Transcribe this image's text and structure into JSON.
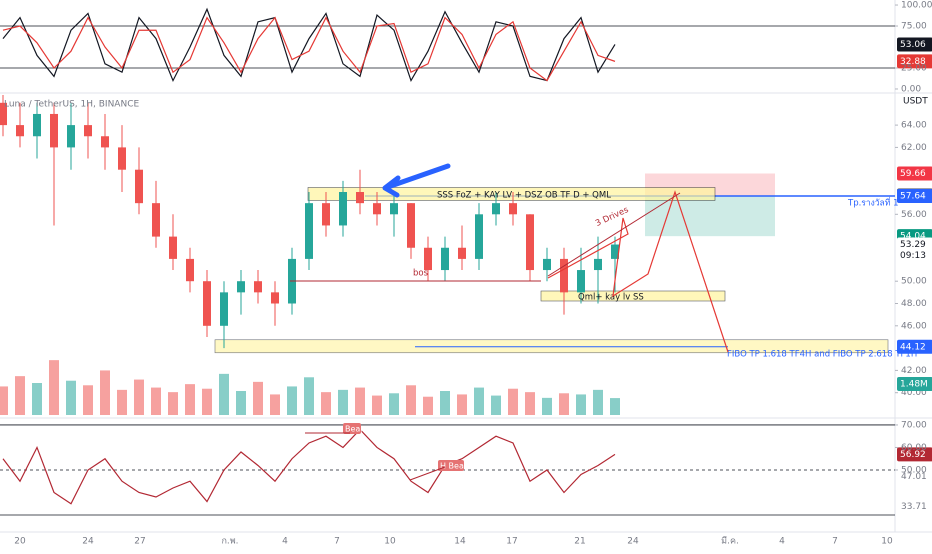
{
  "chart_data": [
    {
      "type": "line",
      "series": [
        {
          "color": "#131722",
          "values": [
            60,
            85,
            40,
            15,
            70,
            90,
            30,
            20,
            85,
            60,
            10,
            50,
            95,
            40,
            15,
            80,
            85,
            20,
            60,
            90,
            30,
            15,
            88,
            70,
            10,
            45,
            92,
            55,
            20,
            80,
            75,
            15,
            10,
            60,
            85,
            20,
            53.06
          ]
        },
        {
          "color": "#e53935",
          "values": [
            70,
            75,
            55,
            25,
            45,
            85,
            50,
            25,
            70,
            70,
            20,
            35,
            85,
            55,
            20,
            60,
            85,
            35,
            45,
            85,
            45,
            20,
            75,
            78,
            20,
            30,
            85,
            65,
            25,
            65,
            80,
            25,
            10,
            45,
            80,
            40,
            32.88
          ]
        }
      ],
      "ylim": [
        -3.6,
        106
      ],
      "yticks": [
        {
          "value": 100,
          "label": "100.00"
        },
        {
          "value": 75,
          "label": "75.00"
        },
        {
          "value": 25,
          "label": "25.00"
        },
        {
          "value": 0,
          "label": "0.00"
        }
      ],
      "hlines": [
        75,
        25
      ]
    },
    {
      "type": "candlestick",
      "title": "Luna / TetherUS, 1H, BINANCE",
      "unit": "USDT",
      "open": [
        66,
        64,
        63,
        65,
        62,
        64,
        63,
        62,
        60,
        57,
        54,
        52,
        50,
        46,
        49,
        50,
        49,
        48,
        52,
        57,
        55,
        58,
        57,
        56,
        57,
        53,
        51,
        53,
        52,
        56,
        57,
        56,
        51,
        52,
        49,
        51,
        52
      ],
      "high": [
        67,
        66,
        66,
        66,
        66,
        66,
        65,
        64,
        62,
        59,
        56,
        53,
        51,
        50,
        51,
        51,
        50,
        53,
        58,
        58,
        59,
        60,
        58,
        58,
        57,
        54,
        54,
        55,
        57,
        58,
        58,
        56,
        53,
        53,
        53,
        54,
        54
      ],
      "low": [
        63,
        62,
        61,
        55,
        60,
        61,
        60,
        58,
        56,
        53,
        51,
        49,
        45,
        44,
        47,
        48,
        46,
        47,
        51,
        54,
        54,
        56,
        55,
        54,
        52,
        50,
        50,
        51,
        51,
        55,
        55,
        50,
        50,
        47,
        48,
        48,
        49
      ],
      "close": [
        64,
        63,
        65,
        62,
        64,
        63,
        62,
        60,
        57,
        54,
        52,
        50,
        46,
        49,
        50,
        49,
        48,
        52,
        57,
        55,
        58,
        57,
        56,
        57,
        53,
        51,
        53,
        52,
        56,
        57,
        56,
        51,
        52,
        49,
        51,
        52,
        53.29
      ],
      "countdown": "09:13",
      "volume": {
        "values": [
          2.5,
          3.4,
          2.8,
          4.8,
          3.0,
          2.6,
          3.9,
          2.2,
          3.1,
          2.4,
          2.0,
          2.7,
          2.3,
          3.6,
          2.1,
          2.9,
          1.8,
          2.5,
          3.3,
          2.0,
          2.2,
          2.4,
          1.7,
          1.9,
          2.6,
          1.6,
          2.1,
          1.8,
          2.4,
          1.7,
          2.3,
          2.0,
          1.5,
          1.9,
          1.8,
          2.2,
          1.48
        ],
        "last_label": "1.48M",
        "ylim": [
          0,
          7
        ]
      },
      "ylim": [
        38,
        66.7
      ],
      "yticks": [
        {
          "value": 64,
          "label": "64.00"
        },
        {
          "value": 62,
          "label": "62.00"
        },
        {
          "value": 56,
          "label": "56.00"
        },
        {
          "value": 50,
          "label": "50.00"
        },
        {
          "value": 48,
          "label": "48.00"
        },
        {
          "value": 46,
          "label": "46.00"
        },
        {
          "value": 42,
          "label": "42.00"
        },
        {
          "value": 40,
          "label": "40.00"
        }
      ],
      "levels": [
        {
          "value": 59.66,
          "color": "#f23645"
        },
        {
          "value": 57.69,
          "color": "#434651"
        },
        {
          "value": 57.64,
          "color": "#2962ff"
        },
        {
          "value": 54.04,
          "color": "#089981"
        },
        {
          "value": 44.12,
          "color": "#2962ff"
        }
      ],
      "annotations": [
        "SSS FoZ + KAY LV + DSZ OB TF D +  QML",
        "3 Drives",
        "bos",
        "Qml+ kay lv SS",
        "Tp.รางวัลที่ 1",
        "FIBO TP 1.618 TF4H and FIBO TP 2.618 TF1H"
      ],
      "colors": {
        "up": "#26a69a",
        "down": "#ef5350"
      },
      "xtick_labels": [
        "20",
        "24",
        "27",
        "ก.พ.",
        "4",
        "7",
        "10",
        "14",
        "17",
        "21",
        "24",
        "มี.ค.",
        "4",
        "7",
        "10"
      ]
    },
    {
      "type": "line",
      "series": [
        {
          "color": "#b22833",
          "values": [
            55,
            45,
            60,
            40,
            35,
            50,
            55,
            45,
            40,
            38,
            42,
            45,
            36,
            50,
            58,
            52,
            45,
            55,
            62,
            65,
            60,
            68,
            60,
            55,
            45,
            40,
            52,
            55,
            60,
            65,
            62,
            45,
            50,
            40,
            48,
            52,
            56.92
          ]
        }
      ],
      "ylim": [
        18.9,
        72.2
      ],
      "yticks": [
        {
          "value": 70,
          "label": "70.00"
        },
        {
          "value": 60,
          "label": "60.00"
        },
        {
          "value": 50,
          "label": "50.00"
        }
      ],
      "hlines": [
        70,
        30
      ],
      "midline": 50,
      "markers": [
        47.01,
        33.71
      ],
      "annotations": [
        "Bear",
        "H Bear"
      ]
    }
  ]
}
